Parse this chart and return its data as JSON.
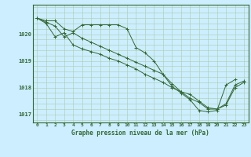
{
  "title": "Graphe pression niveau de la mer (hPa)",
  "bg_color": "#cceeff",
  "grid_color": "#aaccaa",
  "line_color": "#336633",
  "xlim": [
    -0.5,
    23.5
  ],
  "ylim": [
    1016.7,
    1021.1
  ],
  "yticks": [
    1017,
    1018,
    1019,
    1020
  ],
  "xticks": [
    0,
    1,
    2,
    3,
    4,
    5,
    6,
    7,
    8,
    9,
    10,
    11,
    12,
    13,
    14,
    15,
    16,
    17,
    18,
    19,
    20,
    21,
    22,
    23
  ],
  "series1": [
    1020.6,
    1020.5,
    1020.5,
    1020.2,
    1020.1,
    1020.35,
    1020.35,
    1020.35,
    1020.35,
    1020.35,
    1020.2,
    1019.5,
    1019.3,
    1019.0,
    1018.5,
    1018.05,
    1017.8,
    1017.55,
    1017.15,
    1017.1,
    1017.15,
    1018.1,
    1018.3,
    null
  ],
  "series2": [
    1020.6,
    1020.45,
    1020.3,
    1019.9,
    1020.05,
    1019.85,
    1019.7,
    1019.55,
    1019.4,
    1019.25,
    1019.1,
    1018.95,
    1018.8,
    1018.65,
    1018.5,
    1018.15,
    1017.85,
    1017.75,
    1017.5,
    1017.25,
    1017.2,
    1017.4,
    1018.1,
    1018.25
  ],
  "series3": [
    1020.6,
    1020.4,
    1019.9,
    1020.05,
    1019.6,
    1019.45,
    1019.35,
    1019.25,
    1019.1,
    1019.0,
    1018.85,
    1018.7,
    1018.5,
    1018.35,
    1018.2,
    1018.0,
    1017.85,
    1017.6,
    1017.45,
    1017.2,
    1017.2,
    1017.35,
    1018.0,
    1018.2
  ]
}
